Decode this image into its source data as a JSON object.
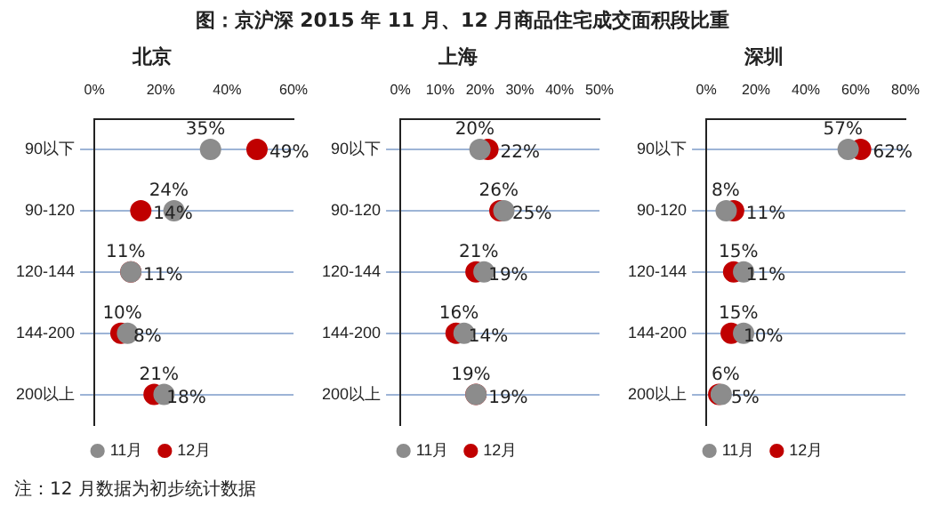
{
  "chart_data": [
    {
      "type": "other",
      "title": "图：京沪深 2015 年 11 月、12 月商品住宅成交面积段比重",
      "annotations": [
        "注：12 月数据为初步统计数据"
      ]
    },
    {
      "type": "scatter",
      "title": "北京",
      "orientation": "horizontal",
      "categories": [
        "90以下",
        "90-120",
        "120-144",
        "144-200",
        "200以上"
      ],
      "series": [
        {
          "name": "11月",
          "color": "#8c8c8c",
          "values": [
            35,
            24,
            11,
            10,
            21
          ],
          "value_labels": [
            "35%",
            "24%",
            "11%",
            "10%",
            "21%"
          ]
        },
        {
          "name": "12月",
          "color": "#c00000",
          "values": [
            49,
            14,
            11,
            8,
            18
          ],
          "value_labels": [
            "49%",
            "14%",
            "11%",
            "8%",
            "18%"
          ]
        }
      ],
      "xlim": [
        0,
        60
      ],
      "xticks": [
        {
          "value": 0,
          "label": "0%"
        },
        {
          "value": 20,
          "label": "20%"
        },
        {
          "value": 40,
          "label": "40%"
        },
        {
          "value": 60,
          "label": "60%"
        }
      ],
      "grid": "y",
      "legend": "bottom",
      "marker": "circle"
    },
    {
      "type": "scatter",
      "title": "上海",
      "orientation": "horizontal",
      "categories": [
        "90以下",
        "90-120",
        "120-144",
        "144-200",
        "200以上"
      ],
      "series": [
        {
          "name": "11月",
          "color": "#8c8c8c",
          "values": [
            20,
            26,
            21,
            16,
            19
          ],
          "value_labels": [
            "20%",
            "26%",
            "21%",
            "16%",
            "19%"
          ]
        },
        {
          "name": "12月",
          "color": "#c00000",
          "values": [
            22,
            25,
            19,
            14,
            19
          ],
          "value_labels": [
            "22%",
            "25%",
            "19%",
            "14%",
            "19%"
          ]
        }
      ],
      "xlim": [
        0,
        50
      ],
      "xticks": [
        {
          "value": 0,
          "label": "0%"
        },
        {
          "value": 10,
          "label": "10%"
        },
        {
          "value": 20,
          "label": "20%"
        },
        {
          "value": 30,
          "label": "30%"
        },
        {
          "value": 40,
          "label": "40%"
        },
        {
          "value": 50,
          "label": "50%"
        }
      ],
      "grid": "y",
      "legend": "bottom",
      "marker": "circle"
    },
    {
      "type": "scatter",
      "title": "深圳",
      "orientation": "horizontal",
      "categories": [
        "90以下",
        "90-120",
        "120-144",
        "144-200",
        "200以上"
      ],
      "series": [
        {
          "name": "11月",
          "color": "#8c8c8c",
          "values": [
            57,
            8,
            15,
            15,
            6
          ],
          "value_labels": [
            "57%",
            "8%",
            "15%",
            "15%",
            "6%"
          ]
        },
        {
          "name": "12月",
          "color": "#c00000",
          "values": [
            62,
            11,
            11,
            10,
            5
          ],
          "value_labels": [
            "62%",
            "11%",
            "11%",
            "10%",
            "5%"
          ]
        }
      ],
      "xlim": [
        0,
        80
      ],
      "xticks": [
        {
          "value": 0,
          "label": "0%"
        },
        {
          "value": 20,
          "label": "20%"
        },
        {
          "value": 40,
          "label": "40%"
        },
        {
          "value": 60,
          "label": "60%"
        },
        {
          "value": 80,
          "label": "80%"
        }
      ],
      "grid": "y",
      "legend": "bottom",
      "marker": "circle"
    }
  ]
}
